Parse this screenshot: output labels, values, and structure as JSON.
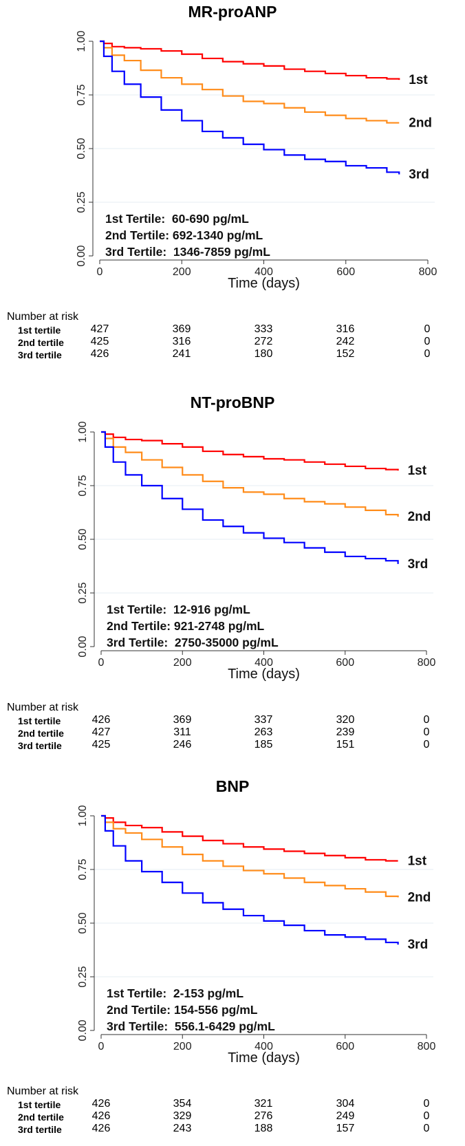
{
  "chart_data": [
    {
      "type": "line",
      "title": "MR-proANP",
      "xlabel": "Time (days)",
      "ylabel": "",
      "xlim": [
        0,
        800
      ],
      "ylim": [
        0,
        1
      ],
      "x_ticks": [
        "0",
        "200",
        "400",
        "600",
        "800"
      ],
      "y_ticks": [
        "0.00",
        "0.25",
        "0.50",
        "0.75",
        "1.00"
      ],
      "grid": true,
      "annotations": [
        "1st Tertile:  60-690 pg/mL",
        "2nd Tertile: 692-1340 pg/mL",
        "3rd Tertile:  1346-7859 pg/mL"
      ],
      "series": [
        {
          "name": "1st",
          "color": "#ff0000",
          "x": [
            0,
            10,
            30,
            60,
            100,
            150,
            200,
            250,
            300,
            350,
            400,
            450,
            500,
            550,
            600,
            650,
            700,
            730
          ],
          "values": [
            1.0,
            0.99,
            0.975,
            0.97,
            0.965,
            0.955,
            0.94,
            0.92,
            0.905,
            0.895,
            0.885,
            0.87,
            0.86,
            0.85,
            0.84,
            0.83,
            0.825,
            0.82
          ]
        },
        {
          "name": "2nd",
          "color": "#ff8c1a",
          "x": [
            0,
            10,
            30,
            60,
            100,
            150,
            200,
            250,
            300,
            350,
            400,
            450,
            500,
            550,
            600,
            650,
            700,
            730
          ],
          "values": [
            1.0,
            0.97,
            0.935,
            0.91,
            0.865,
            0.83,
            0.8,
            0.775,
            0.745,
            0.72,
            0.71,
            0.69,
            0.67,
            0.655,
            0.64,
            0.63,
            0.62,
            0.62
          ]
        },
        {
          "name": "3rd",
          "color": "#0000ff",
          "x": [
            0,
            10,
            30,
            60,
            100,
            150,
            200,
            250,
            300,
            350,
            400,
            450,
            500,
            550,
            600,
            650,
            700,
            730
          ],
          "values": [
            1.0,
            0.93,
            0.86,
            0.8,
            0.74,
            0.68,
            0.63,
            0.58,
            0.55,
            0.52,
            0.495,
            0.47,
            0.45,
            0.44,
            0.42,
            0.41,
            0.39,
            0.38
          ]
        }
      ],
      "risk_table": {
        "header": "Number at risk",
        "time_points": [
          0,
          200,
          400,
          600,
          800
        ],
        "rows": [
          {
            "label": "1st tertile",
            "values": [
              "427",
              "369",
              "333",
              "316",
              "0"
            ]
          },
          {
            "label": "2nd tertile",
            "values": [
              "425",
              "316",
              "272",
              "242",
              "0"
            ]
          },
          {
            "label": "3rd tertile",
            "values": [
              "426",
              "241",
              "180",
              "152",
              "0"
            ]
          }
        ]
      }
    },
    {
      "type": "line",
      "title": "NT-proBNP",
      "xlabel": "Time (days)",
      "ylabel": "",
      "xlim": [
        0,
        800
      ],
      "ylim": [
        0,
        1
      ],
      "x_ticks": [
        "0",
        "200",
        "400",
        "600",
        "800"
      ],
      "y_ticks": [
        "0.00",
        "0.25",
        "0.50",
        "0.75",
        "1.00"
      ],
      "grid": true,
      "annotations": [
        "1st Tertile:  12-916 pg/mL",
        "2nd Tertile: 921-2748 pg/mL",
        "3rd Tertile:  2750-35000 pg/mL"
      ],
      "series": [
        {
          "name": "1st",
          "color": "#ff0000",
          "x": [
            0,
            10,
            30,
            60,
            100,
            150,
            200,
            250,
            300,
            350,
            400,
            450,
            500,
            550,
            600,
            650,
            700,
            730
          ],
          "values": [
            1.0,
            0.99,
            0.975,
            0.965,
            0.96,
            0.945,
            0.93,
            0.91,
            0.895,
            0.885,
            0.875,
            0.87,
            0.86,
            0.85,
            0.84,
            0.83,
            0.825,
            0.82
          ]
        },
        {
          "name": "2nd",
          "color": "#ff8c1a",
          "x": [
            0,
            10,
            30,
            60,
            100,
            150,
            200,
            250,
            300,
            350,
            400,
            450,
            500,
            550,
            600,
            650,
            700,
            730
          ],
          "values": [
            1.0,
            0.97,
            0.93,
            0.905,
            0.87,
            0.835,
            0.8,
            0.77,
            0.74,
            0.72,
            0.71,
            0.69,
            0.675,
            0.665,
            0.65,
            0.635,
            0.615,
            0.605
          ]
        },
        {
          "name": "3rd",
          "color": "#0000ff",
          "x": [
            0,
            10,
            30,
            60,
            100,
            150,
            200,
            250,
            300,
            350,
            400,
            450,
            500,
            550,
            600,
            650,
            700,
            730
          ],
          "values": [
            1.0,
            0.93,
            0.86,
            0.8,
            0.75,
            0.69,
            0.64,
            0.59,
            0.56,
            0.53,
            0.505,
            0.485,
            0.46,
            0.44,
            0.42,
            0.41,
            0.4,
            0.385
          ]
        }
      ],
      "risk_table": {
        "header": "Number at risk",
        "time_points": [
          0,
          200,
          400,
          600,
          800
        ],
        "rows": [
          {
            "label": "1st tertile",
            "values": [
              "426",
              "369",
              "337",
              "320",
              "0"
            ]
          },
          {
            "label": "2nd tertile",
            "values": [
              "427",
              "311",
              "263",
              "239",
              "0"
            ]
          },
          {
            "label": "3rd tertile",
            "values": [
              "425",
              "246",
              "185",
              "151",
              "0"
            ]
          }
        ]
      }
    },
    {
      "type": "line",
      "title": "BNP",
      "xlabel": "Time (days)",
      "ylabel": "",
      "xlim": [
        0,
        800
      ],
      "ylim": [
        0,
        1
      ],
      "x_ticks": [
        "0",
        "200",
        "400",
        "600",
        "800"
      ],
      "y_ticks": [
        "0.00",
        "0.25",
        "0.50",
        "0.75",
        "1.00"
      ],
      "grid": true,
      "annotations": [
        "1st Tertile:  2-153 pg/mL",
        "2nd Tertile: 154-556 pg/mL",
        "3rd Tertile:  556.1-6429 pg/mL"
      ],
      "series": [
        {
          "name": "1st",
          "color": "#ff0000",
          "x": [
            0,
            10,
            30,
            60,
            100,
            150,
            200,
            250,
            300,
            350,
            400,
            450,
            500,
            550,
            600,
            650,
            700,
            730
          ],
          "values": [
            1.0,
            0.99,
            0.97,
            0.955,
            0.945,
            0.925,
            0.905,
            0.885,
            0.87,
            0.855,
            0.845,
            0.835,
            0.825,
            0.815,
            0.805,
            0.795,
            0.79,
            0.79
          ]
        },
        {
          "name": "2nd",
          "color": "#ff8c1a",
          "x": [
            0,
            10,
            30,
            60,
            100,
            150,
            200,
            250,
            300,
            350,
            400,
            450,
            500,
            550,
            600,
            650,
            700,
            730
          ],
          "values": [
            1.0,
            0.97,
            0.94,
            0.92,
            0.89,
            0.855,
            0.82,
            0.79,
            0.765,
            0.745,
            0.73,
            0.71,
            0.69,
            0.675,
            0.66,
            0.645,
            0.625,
            0.62
          ]
        },
        {
          "name": "3rd",
          "color": "#0000ff",
          "x": [
            0,
            10,
            30,
            60,
            100,
            150,
            200,
            250,
            300,
            350,
            400,
            450,
            500,
            550,
            600,
            650,
            700,
            730
          ],
          "values": [
            1.0,
            0.93,
            0.86,
            0.79,
            0.74,
            0.69,
            0.64,
            0.595,
            0.565,
            0.535,
            0.51,
            0.49,
            0.465,
            0.445,
            0.435,
            0.425,
            0.41,
            0.4
          ]
        }
      ],
      "risk_table": {
        "header": "Number at risk",
        "time_points": [
          0,
          200,
          400,
          600,
          800
        ],
        "rows": [
          {
            "label": "1st tertile",
            "values": [
              "426",
              "354",
              "321",
              "304",
              "0"
            ]
          },
          {
            "label": "2nd tertile",
            "values": [
              "426",
              "329",
              "276",
              "249",
              "0"
            ]
          },
          {
            "label": "3rd tertile",
            "values": [
              "426",
              "243",
              "188",
              "157",
              "0"
            ]
          }
        ]
      }
    }
  ]
}
